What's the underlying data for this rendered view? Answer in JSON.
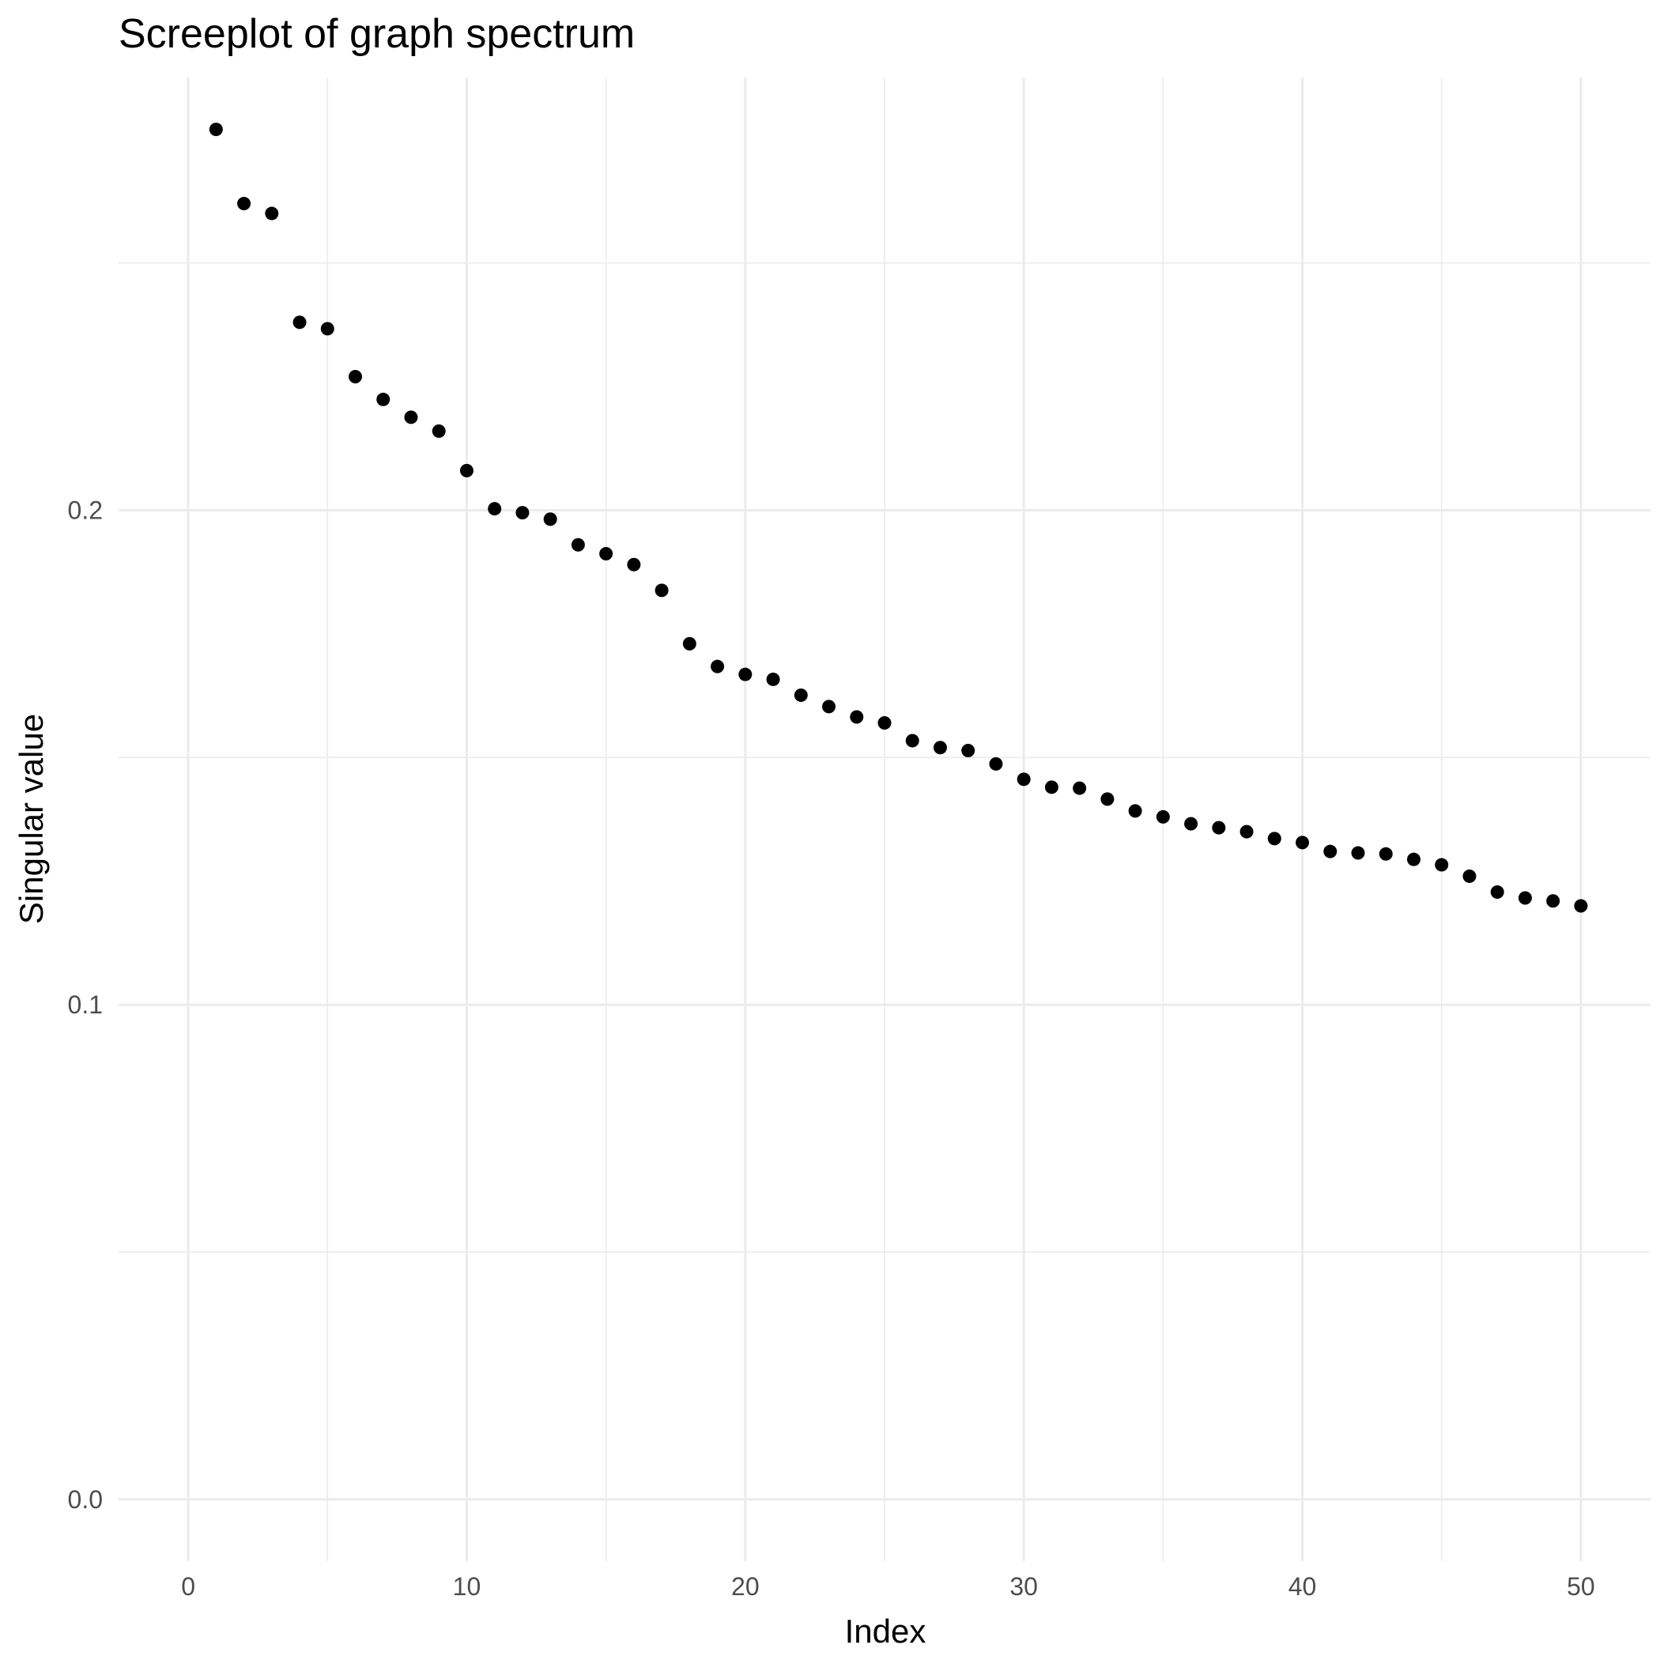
{
  "chart_data": {
    "type": "scatter",
    "title": "Screeplot of graph spectrum",
    "xlabel": "Index",
    "ylabel": "Singular value",
    "xlim": [
      -2.5,
      52.5
    ],
    "ylim": [
      -0.0125,
      0.2875
    ],
    "x_ticks": [
      0,
      10,
      20,
      30,
      40,
      50
    ],
    "x_tick_labels": [
      "0",
      "10",
      "20",
      "30",
      "40",
      "50"
    ],
    "x_minor_ticks": [
      5,
      15,
      25,
      35,
      45
    ],
    "y_ticks": [
      0.0,
      0.1,
      0.2
    ],
    "y_tick_labels": [
      "0.0",
      "0.1",
      "0.2"
    ],
    "y_minor_ticks": [
      0.05,
      0.15,
      0.25
    ],
    "grid": true,
    "colors": {
      "point": "#000000",
      "grid_major": "#ebebeb",
      "grid_minor": "#ebebeb",
      "tick_label": "#4d4d4d",
      "text": "#000000",
      "background": "#ffffff"
    },
    "series": [
      {
        "name": "Singular value",
        "x": [
          1,
          2,
          3,
          4,
          5,
          6,
          7,
          8,
          9,
          10,
          11,
          12,
          13,
          14,
          15,
          16,
          17,
          18,
          19,
          20,
          21,
          22,
          23,
          24,
          25,
          26,
          27,
          28,
          29,
          30,
          31,
          32,
          33,
          34,
          35,
          36,
          37,
          38,
          39,
          40,
          41,
          42,
          43,
          44,
          45,
          46,
          47,
          48,
          49,
          50
        ],
        "y": [
          0.277,
          0.262,
          0.26,
          0.238,
          0.2367,
          0.227,
          0.2224,
          0.2188,
          0.216,
          0.208,
          0.2003,
          0.1995,
          0.1982,
          0.193,
          0.1912,
          0.189,
          0.1838,
          0.173,
          0.1684,
          0.1668,
          0.1658,
          0.1626,
          0.1603,
          0.1582,
          0.157,
          0.1534,
          0.152,
          0.1514,
          0.1487,
          0.1456,
          0.144,
          0.1438,
          0.1416,
          0.1392,
          0.138,
          0.1366,
          0.1358,
          0.135,
          0.1336,
          0.1328,
          0.131,
          0.1307,
          0.1305,
          0.1294,
          0.1283,
          0.126,
          0.1228,
          0.1216,
          0.121,
          0.12
        ]
      }
    ]
  }
}
